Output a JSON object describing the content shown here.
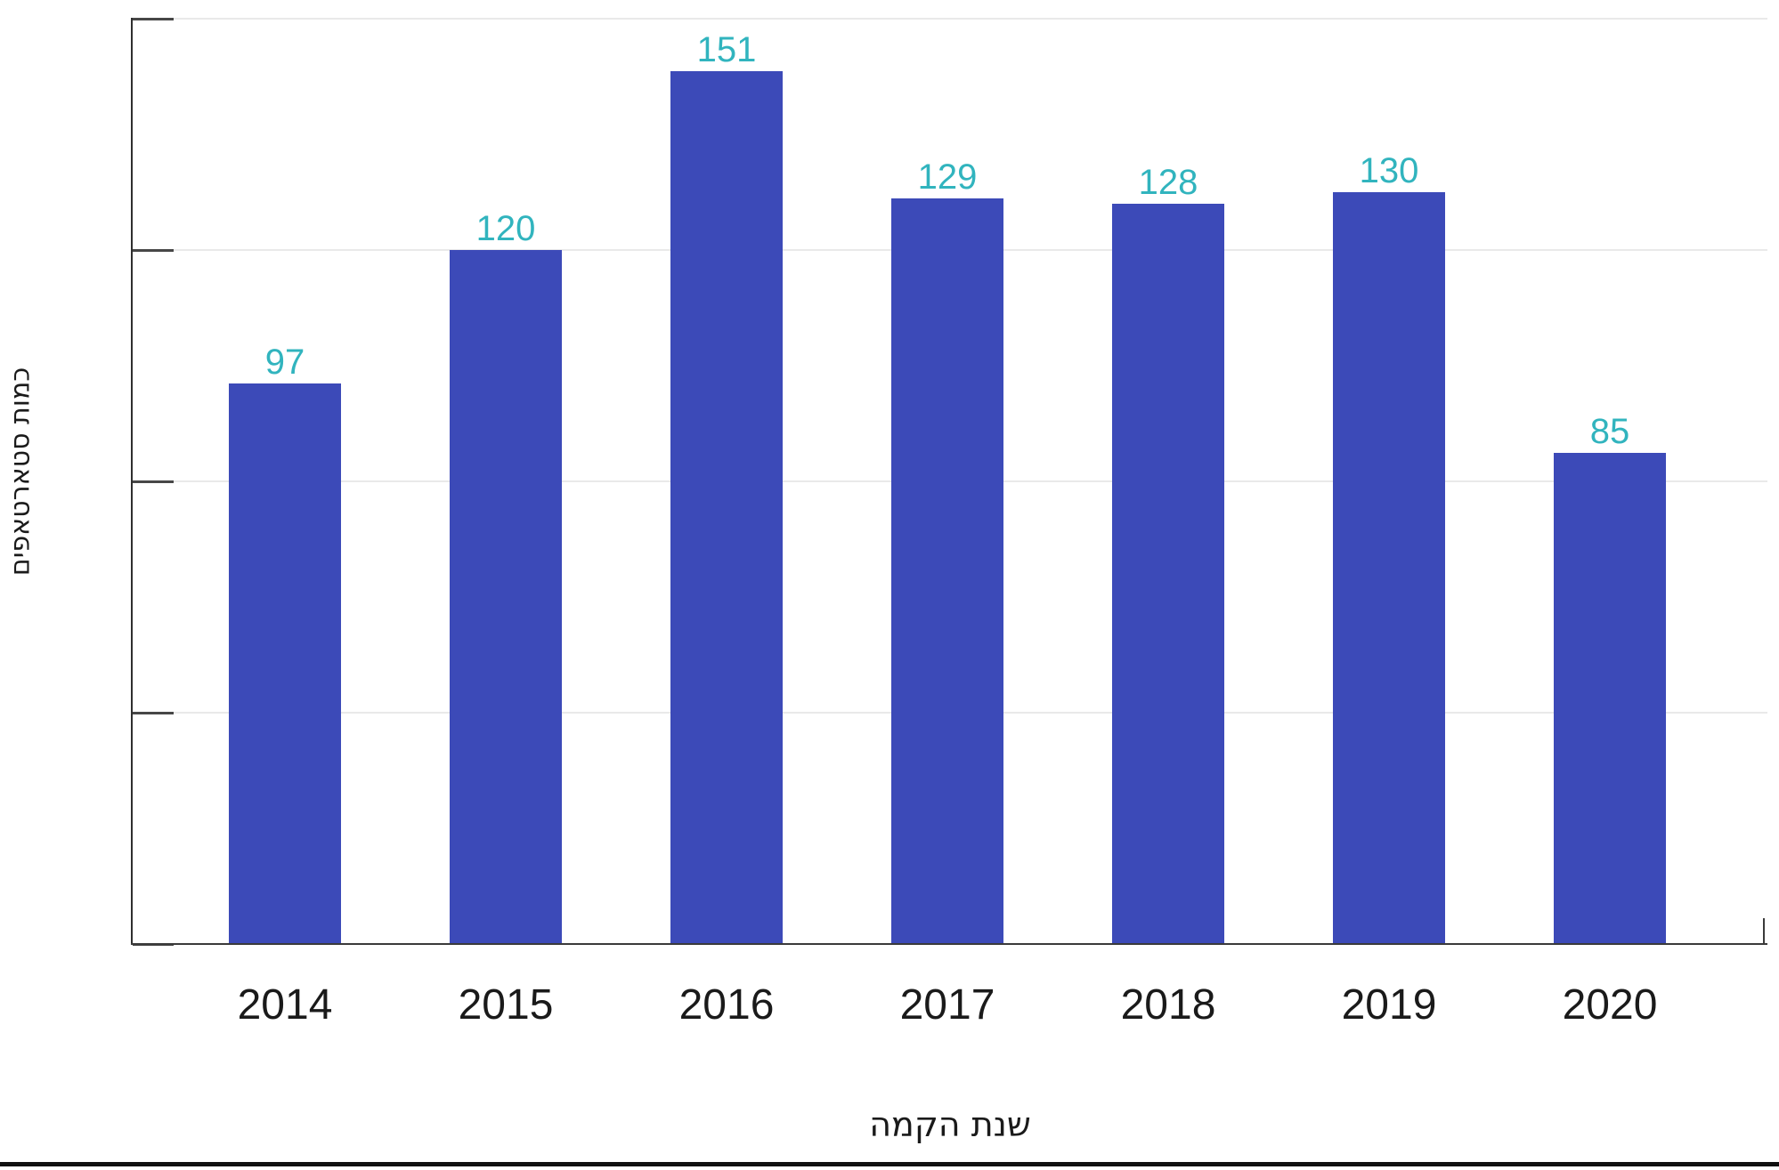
{
  "chart_data": {
    "type": "bar",
    "title": "",
    "categories": [
      "2014",
      "2015",
      "2016",
      "2017",
      "2018",
      "2019",
      "2020"
    ],
    "values": [
      97,
      120,
      151,
      129,
      128,
      130,
      85
    ],
    "xlabel": "שנת הקמה",
    "ylabel": "כמות סטארטאפים",
    "ylim": [
      0,
      160
    ],
    "gridline_values": [
      0,
      40,
      80,
      120,
      160
    ],
    "y_tick_labels_shown": false,
    "grid": "horizontal",
    "legend_position": "none",
    "colors": {
      "bar": "#3C4AB8",
      "value_label": "#31B4BE",
      "axis_line": "#3A3A3A",
      "tick": "#474747",
      "gridline": "#E9E9E9",
      "text": "#1A1A1A",
      "bottom_rule": "#101010"
    }
  }
}
